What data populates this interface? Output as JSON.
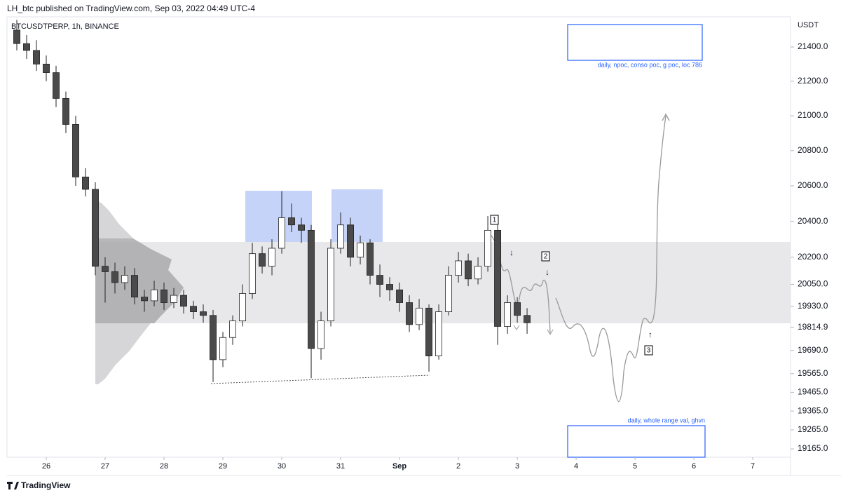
{
  "header": {
    "publisher": "LH_btc published on TradingView.com, Sep 03, 2022 04:49 UTC-4",
    "symbol": "BTCUSDTPERP, 1h, BINANCE",
    "footer": "TradingView"
  },
  "chart_data": {
    "type": "candlestick",
    "currency": "USDT",
    "log_scale": true,
    "up_color": "#ffffff",
    "down_color": "#4a4a4a",
    "wick_color": "#222222",
    "x": [
      -12,
      -8,
      -4,
      0,
      4,
      8,
      12,
      16,
      20,
      24,
      28,
      32,
      36,
      40,
      44,
      48,
      52,
      56,
      60,
      64,
      68,
      72,
      76,
      80,
      84,
      88,
      92,
      96,
      100,
      104,
      108,
      112,
      116,
      120,
      124,
      128,
      132,
      136,
      140,
      144,
      148,
      152,
      156,
      160,
      164,
      168,
      172,
      176,
      180,
      184,
      188,
      192,
      196
    ],
    "open": [
      21500,
      21420,
      21380,
      21300,
      21250,
      21100,
      20950,
      20650,
      20580,
      20150,
      20120,
      20060,
      20100,
      19980,
      19960,
      20020,
      19950,
      19990,
      19930,
      19900,
      19880,
      19640,
      19760,
      19850,
      20000,
      20220,
      20150,
      20250,
      20420,
      20380,
      20350,
      19700,
      19850,
      20250,
      20380,
      20200,
      20280,
      20100,
      20050,
      20020,
      19950,
      19830,
      19920,
      19660,
      19900,
      20100,
      20180,
      20080,
      20150,
      20350,
      19820,
      19950,
      19880
    ],
    "high": [
      21560,
      21470,
      21440,
      21350,
      21290,
      21140,
      21000,
      20700,
      20620,
      20200,
      20170,
      20150,
      20140,
      20020,
      20070,
      20060,
      20030,
      20020,
      19960,
      19940,
      19910,
      19790,
      19880,
      20050,
      20280,
      20260,
      20300,
      20570,
      20500,
      20420,
      20380,
      19900,
      20300,
      20450,
      20420,
      20320,
      20300,
      20160,
      20090,
      20060,
      19990,
      19970,
      19940,
      19940,
      20150,
      20230,
      20220,
      20200,
      20430,
      20380,
      19990,
      19980,
      19920
    ],
    "low": [
      21380,
      21330,
      21260,
      21200,
      21050,
      20900,
      20600,
      20540,
      20100,
      19950,
      20000,
      20020,
      19940,
      19900,
      19930,
      19910,
      19920,
      19890,
      19860,
      19840,
      19520,
      19600,
      19720,
      19820,
      19970,
      20110,
      20100,
      20220,
      20340,
      20280,
      19540,
      19640,
      19820,
      20220,
      20150,
      20160,
      20050,
      19980,
      19960,
      19900,
      19790,
      19800,
      19575,
      19640,
      19880,
      20060,
      20040,
      20050,
      20120,
      19720,
      19780,
      19840,
      19780
    ],
    "close": [
      21420,
      21380,
      21300,
      21250,
      21100,
      20950,
      20650,
      20580,
      20150,
      20120,
      20060,
      20100,
      19980,
      19960,
      20020,
      19950,
      19990,
      19930,
      19900,
      19880,
      19640,
      19760,
      19850,
      20000,
      20220,
      20150,
      20250,
      20420,
      20380,
      20350,
      19700,
      19850,
      20250,
      20380,
      20200,
      20280,
      20100,
      20050,
      20020,
      19950,
      19830,
      19920,
      19660,
      19900,
      20100,
      20180,
      20080,
      20150,
      20350,
      19820,
      19950,
      19880,
      19840
    ],
    "xlim": [
      -16,
      303.4
    ],
    "xticks": [
      {
        "value": 0,
        "label": "26"
      },
      {
        "value": 24,
        "label": "27"
      },
      {
        "value": 48,
        "label": "28"
      },
      {
        "value": 72,
        "label": "29"
      },
      {
        "value": 96,
        "label": "30"
      },
      {
        "value": 120,
        "label": "31"
      },
      {
        "value": 144,
        "label": "Sep"
      },
      {
        "value": 168,
        "label": "2"
      },
      {
        "value": 192,
        "label": "3"
      },
      {
        "value": 216,
        "label": "4"
      },
      {
        "value": 240,
        "label": "5"
      },
      {
        "value": 264,
        "label": "6"
      },
      {
        "value": 288,
        "label": "7"
      }
    ],
    "ylim": [
      19121,
      21578
    ],
    "yticks": [
      {
        "value": 21400,
        "label": "21400.0"
      },
      {
        "value": 21200,
        "label": "21200.0"
      },
      {
        "value": 21000,
        "label": "21000.0"
      },
      {
        "value": 20800,
        "label": "20800.0"
      },
      {
        "value": 20600,
        "label": "20600.0"
      },
      {
        "value": 20400,
        "label": "20400.0"
      },
      {
        "value": 20200,
        "label": "20200.0"
      },
      {
        "value": 20050,
        "label": "20050.0"
      },
      {
        "value": 19930,
        "label": "19930.0"
      },
      19814.9,
      {
        "value": 19690,
        "label": "19690.0"
      },
      {
        "value": 19565,
        "label": "19565.0"
      },
      {
        "value": 19465,
        "label": "19465.0"
      },
      {
        "value": 19365,
        "label": "19365.0"
      },
      {
        "value": 19265,
        "label": "19265.0"
      },
      {
        "value": 19165,
        "label": "19165.0"
      }
    ],
    "annotations": [
      "daily, npoc, conso poc, g poc, loc 786",
      "daily, whole range val, ghvn",
      "1",
      "2",
      "3"
    ]
  }
}
